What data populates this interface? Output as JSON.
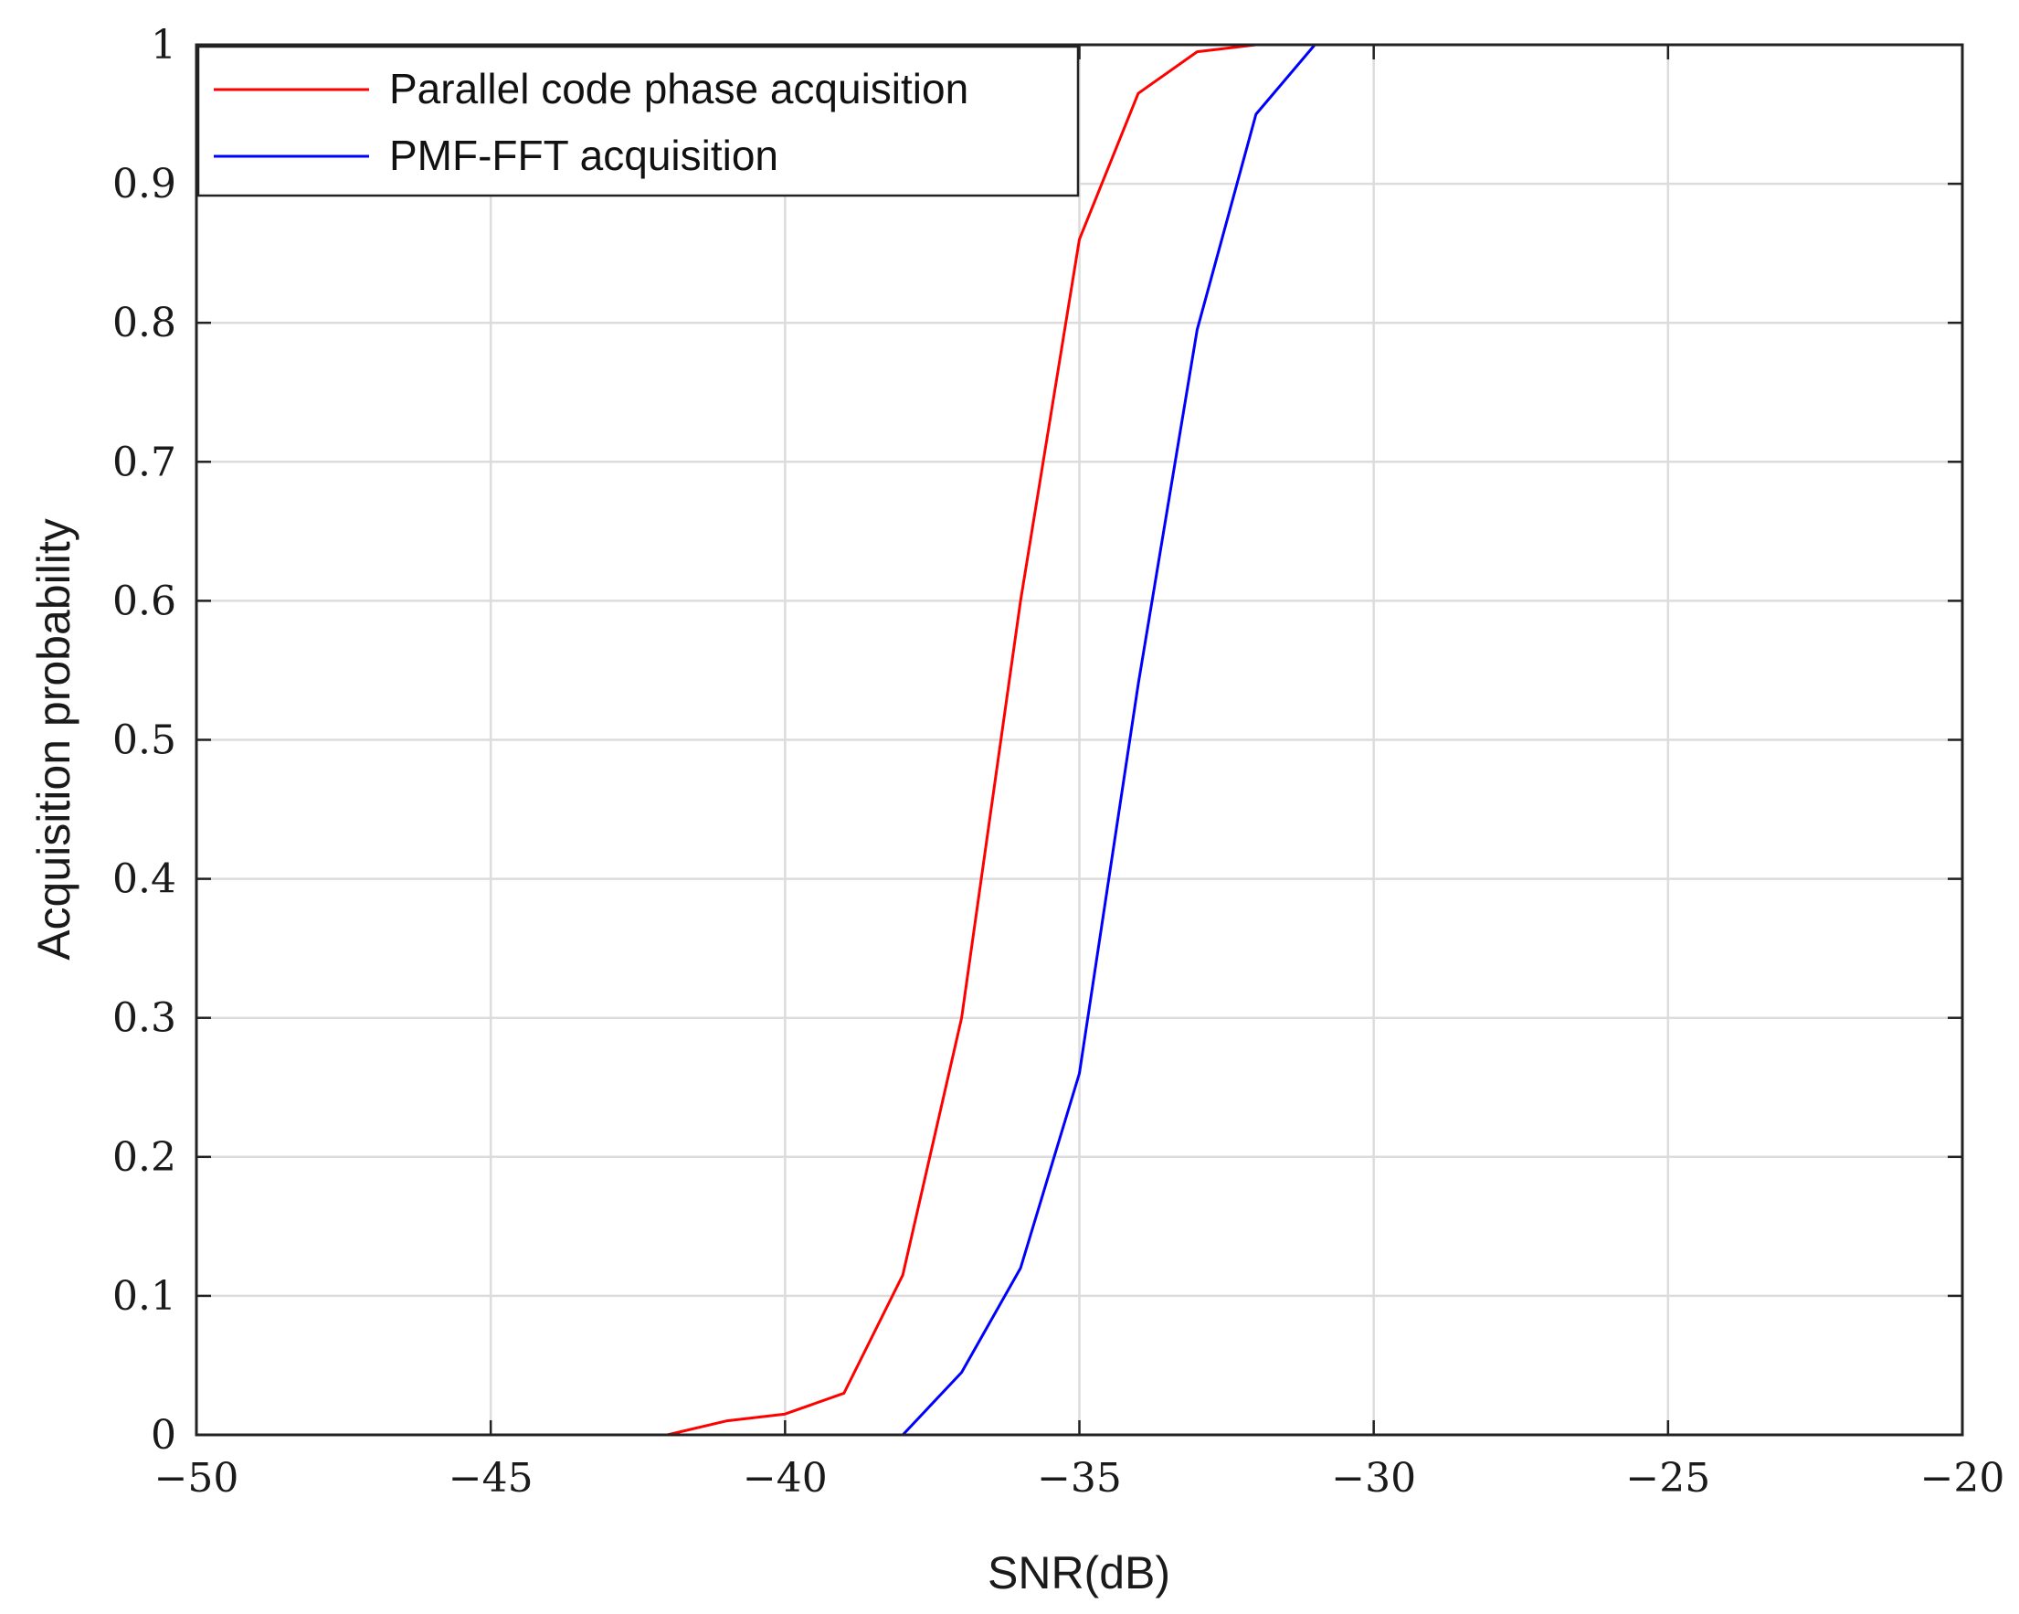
{
  "chart_data": {
    "type": "line",
    "title": "",
    "xlabel": "SNR(dB)",
    "ylabel": "Acquisition probability",
    "xlim": [
      -50,
      -20
    ],
    "ylim": [
      0,
      1
    ],
    "grid": true,
    "legend_position": "top-left",
    "x_ticks": [
      -50,
      -45,
      -40,
      -35,
      -30,
      -25,
      -20
    ],
    "x_tick_labels": [
      "−50",
      "−45",
      "−40",
      "−35",
      "−30",
      "−25",
      "−20"
    ],
    "y_ticks": [
      0,
      0.1,
      0.2,
      0.3,
      0.4,
      0.5,
      0.6,
      0.7,
      0.8,
      0.9,
      1
    ],
    "y_tick_labels": [
      "0",
      "0.1",
      "0.2",
      "0.3",
      "0.4",
      "0.5",
      "0.6",
      "0.7",
      "0.8",
      "0.9",
      "1"
    ],
    "series": [
      {
        "name": "Parallel code phase acquisition",
        "color": "#ff0000",
        "x": [
          -50,
          -49,
          -48,
          -47,
          -46,
          -45,
          -44,
          -43,
          -42,
          -41,
          -40,
          -39,
          -38,
          -37,
          -36,
          -35,
          -34,
          -33,
          -32,
          -31,
          -30,
          -29,
          -28,
          -27,
          -26,
          -25,
          -24,
          -23,
          -22,
          -21,
          -20
        ],
        "y": [
          0,
          0,
          0,
          0,
          0,
          0,
          0,
          0,
          0,
          0.01,
          0.015,
          0.03,
          0.115,
          0.3,
          0.6,
          0.86,
          0.965,
          0.995,
          1,
          1,
          1,
          1,
          1,
          1,
          1,
          1,
          1,
          1,
          1,
          1,
          1
        ]
      },
      {
        "name": "PMF-FFT acquisition",
        "color": "#0000ff",
        "x": [
          -50,
          -49,
          -48,
          -47,
          -46,
          -45,
          -44,
          -43,
          -42,
          -41,
          -40,
          -39,
          -38,
          -37,
          -36,
          -35,
          -34,
          -33,
          -32,
          -31,
          -30,
          -29,
          -28,
          -27,
          -26,
          -25,
          -24,
          -23,
          -22,
          -21,
          -20
        ],
        "y": [
          0,
          0,
          0,
          0,
          0,
          0,
          0,
          0,
          0,
          0,
          0,
          0,
          0,
          0.045,
          0.12,
          0.26,
          0.54,
          0.795,
          0.95,
          1,
          1,
          1,
          1,
          1,
          1,
          1,
          1,
          1,
          1,
          1,
          1
        ]
      }
    ]
  }
}
